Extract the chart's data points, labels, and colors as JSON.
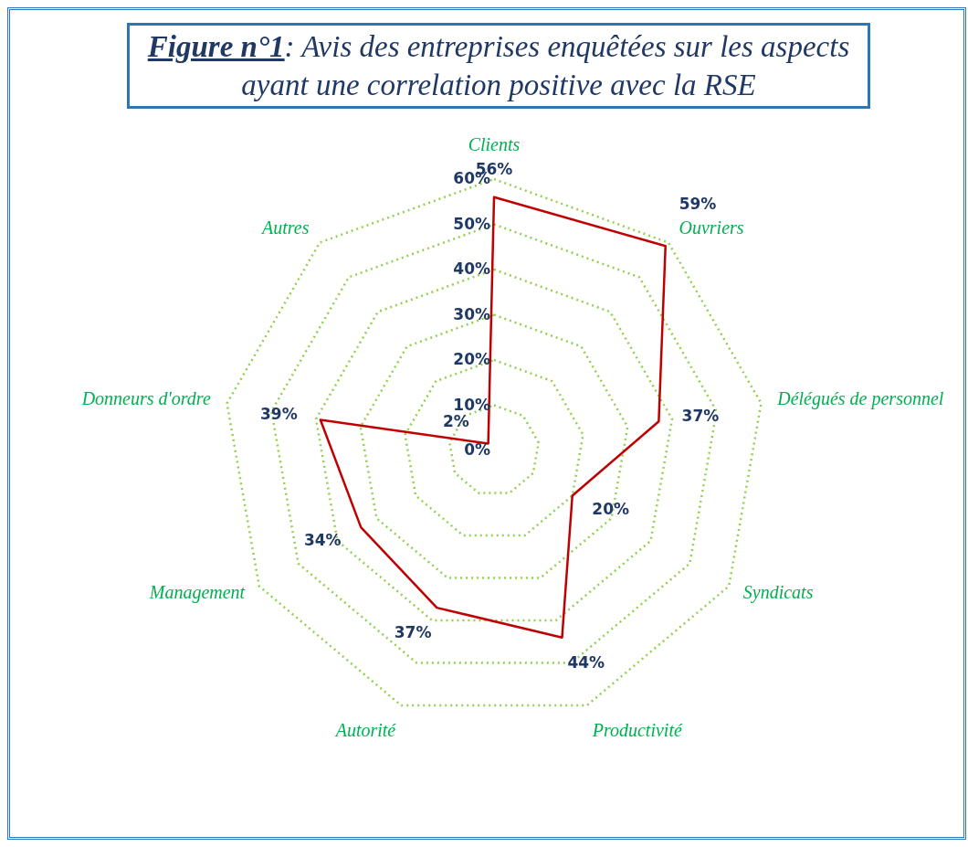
{
  "chart_data": {
    "type": "radar",
    "title": "Figure n°1: Avis des entreprises enquêtées sur les aspects ayant une correlation positive avec la RSE",
    "categories": [
      "Clients",
      "Ouvriers",
      "Délégués de personnel",
      "Syndicats",
      "Productivité",
      "Autorité",
      "Management",
      "Donneurs d'ordre",
      "Autres"
    ],
    "series": [
      {
        "color": "#c00000",
        "values": [
          56,
          59,
          37,
          20,
          44,
          37,
          34,
          39,
          2
        ],
        "value_labels": [
          "56%",
          "59%",
          "37%",
          "20%",
          "44%",
          "37%",
          "34%",
          "39%",
          "2%"
        ]
      }
    ],
    "ylim": [
      0,
      60
    ],
    "yticks": [
      {
        "value": 0,
        "label": "0%"
      },
      {
        "value": 10,
        "label": "10%"
      },
      {
        "value": 20,
        "label": "20%"
      },
      {
        "value": 30,
        "label": "30%"
      },
      {
        "value": 40,
        "label": "40%"
      },
      {
        "value": 50,
        "label": "50%"
      },
      {
        "value": 60,
        "label": "60%"
      }
    ],
    "grid": true,
    "legend": false,
    "marker": "none",
    "line_style": "solid"
  }
}
